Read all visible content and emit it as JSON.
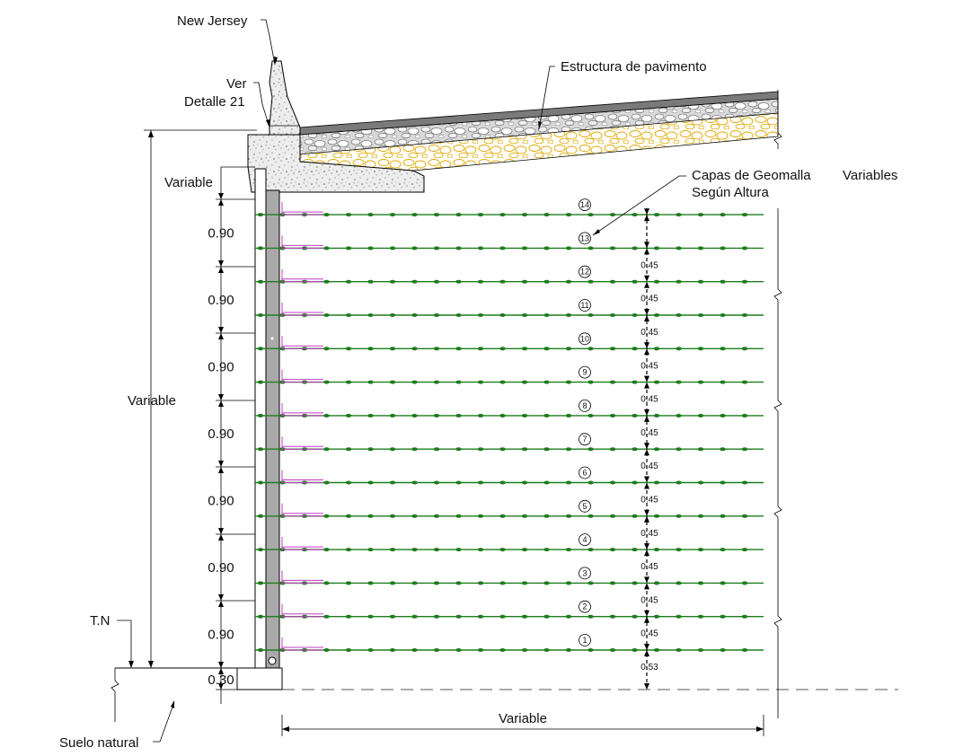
{
  "labels": {
    "new_jersey": "New Jersey",
    "ver": "Ver",
    "detalle": "Detalle 21",
    "estructura": "Estructura de pavimento",
    "capas_line1": "Capas de Geomalla",
    "capas_line2": "Según Altura",
    "variables": "Variables",
    "variable_top": "Variable",
    "variable_left": "Variable",
    "variable_bottom": "Variable",
    "tn": "T.N",
    "suelo": "Suelo natural"
  },
  "dims_left": [
    "0.90",
    "0.90",
    "0.90",
    "0.90",
    "0.90",
    "0.90",
    "0.90"
  ],
  "dim_base": "0.30",
  "layers": [
    {
      "num": "1",
      "spacing": "0.53"
    },
    {
      "num": "2",
      "spacing": "0.45"
    },
    {
      "num": "3",
      "spacing": "0.45"
    },
    {
      "num": "4",
      "spacing": "0.45"
    },
    {
      "num": "5",
      "spacing": "0.45"
    },
    {
      "num": "6",
      "spacing": "0.45"
    },
    {
      "num": "7",
      "spacing": "0.45"
    },
    {
      "num": "8",
      "spacing": "0.45"
    },
    {
      "num": "9",
      "spacing": "0.45"
    },
    {
      "num": "10",
      "spacing": "0.45"
    },
    {
      "num": "11",
      "spacing": "0.45"
    },
    {
      "num": "12",
      "spacing": "0.45"
    },
    {
      "num": "13",
      "spacing": "0.45"
    },
    {
      "num": "14",
      "spacing": ""
    }
  ],
  "colors": {
    "geogrid": "#1e7d1e",
    "connector": "#c03cc0",
    "panel": "#a9a9a9",
    "subbase": "#e0a800"
  }
}
